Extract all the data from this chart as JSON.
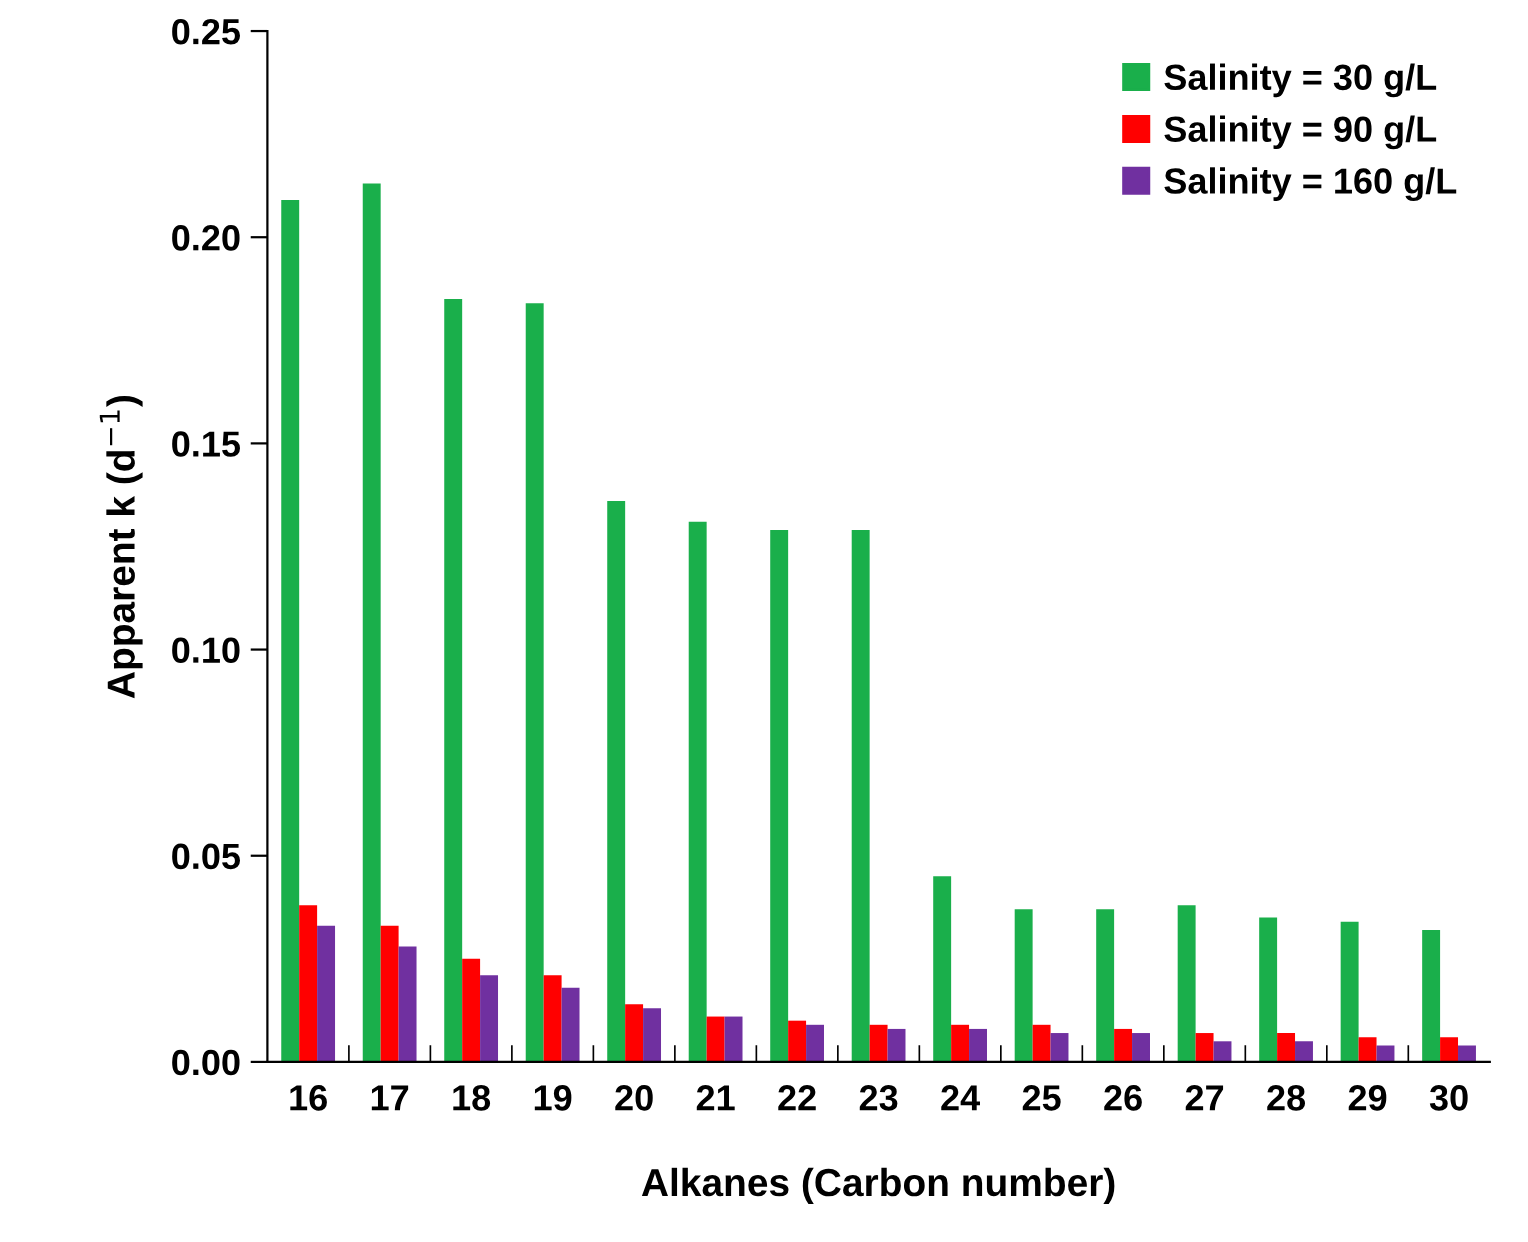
{
  "chart_data": {
    "type": "bar",
    "xlabel": "Alkanes (Carbon number)",
    "ylabel": "Apparent k (d$^{−1}$)",
    "categories": [
      "16",
      "17",
      "18",
      "19",
      "20",
      "21",
      "22",
      "23",
      "24",
      "25",
      "26",
      "27",
      "28",
      "29",
      "30"
    ],
    "series": [
      {
        "name": "Salinity = 30 g/L",
        "color": "#1aaf4b",
        "values": [
          0.209,
          0.213,
          0.185,
          0.184,
          0.136,
          0.131,
          0.129,
          0.129,
          0.045,
          0.037,
          0.037,
          0.038,
          0.035,
          0.034,
          0.032
        ]
      },
      {
        "name": "Salinity = 90 g/L",
        "color": "#ff0000",
        "values": [
          0.038,
          0.033,
          0.025,
          0.021,
          0.014,
          0.011,
          0.01,
          0.009,
          0.009,
          0.009,
          0.008,
          0.007,
          0.007,
          0.006,
          0.006
        ]
      },
      {
        "name": "Salinity = 160 g/L",
        "color": "#7030a0",
        "values": [
          0.033,
          0.028,
          0.021,
          0.018,
          0.013,
          0.011,
          0.009,
          0.008,
          0.008,
          0.007,
          0.007,
          0.005,
          0.005,
          0.004,
          0.004
        ]
      }
    ],
    "ylim": [
      0,
      0.25
    ],
    "yticks": [
      {
        "value": 0,
        "label": "0.00"
      },
      {
        "value": 0.05,
        "label": "0.05"
      },
      {
        "value": 0.1,
        "label": "0.10"
      },
      {
        "value": 0.15,
        "label": "0.15"
      },
      {
        "value": 0.2,
        "label": "0.20"
      },
      {
        "value": 0.25,
        "label": "0.25"
      }
    ],
    "grid": false,
    "legend": "top right"
  }
}
